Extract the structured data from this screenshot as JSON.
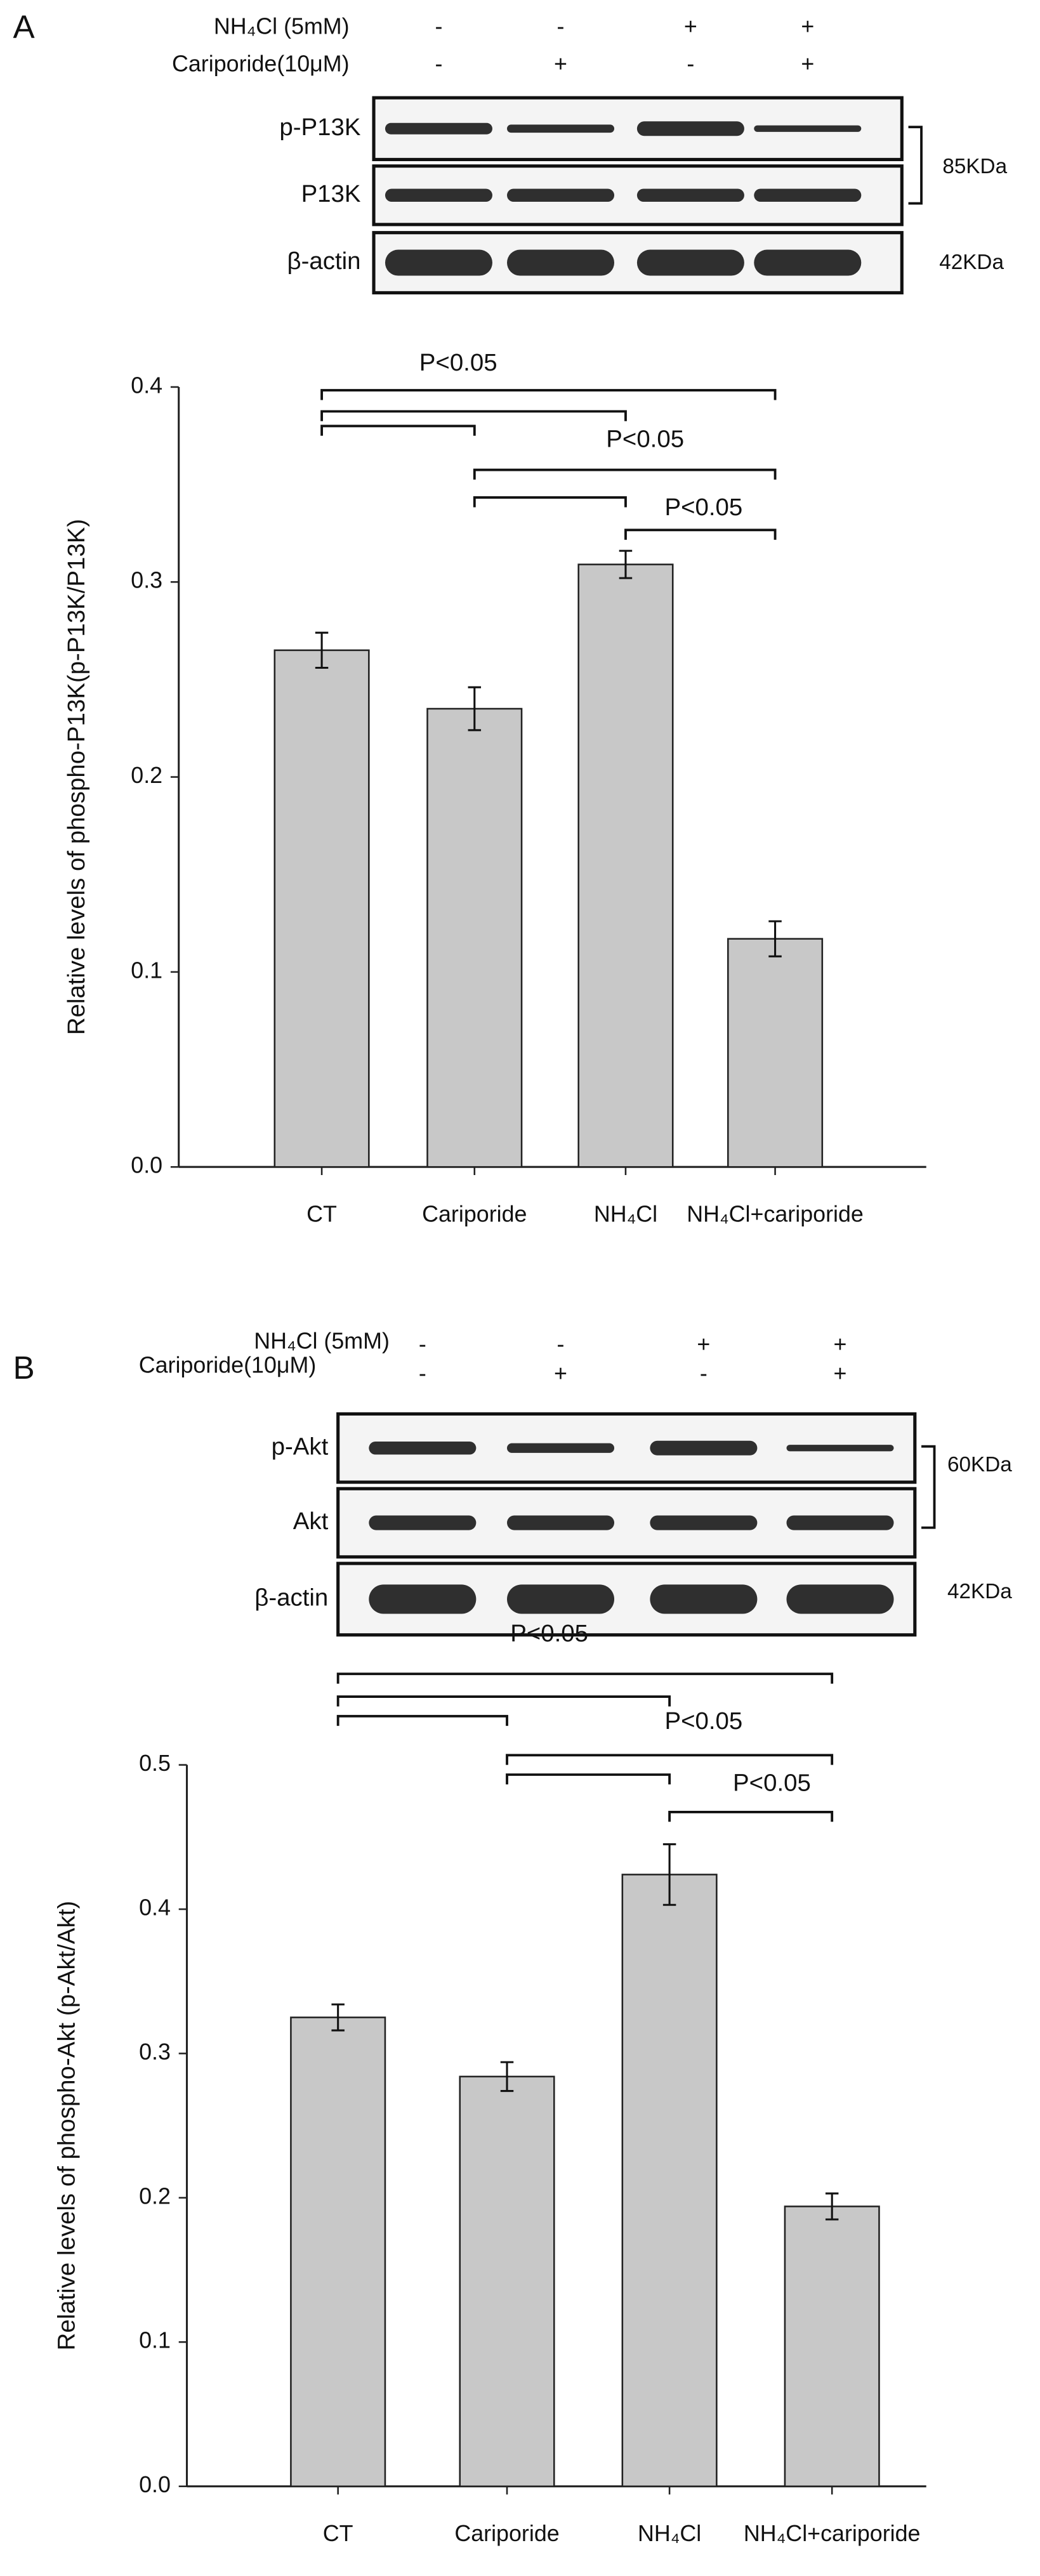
{
  "chart_data": [
    {
      "type": "bar",
      "panel": "A",
      "treatments": [
        {
          "name": "NH₄Cl (5mM)",
          "signs": [
            "-",
            "-",
            "+",
            "+"
          ]
        },
        {
          "name": "Cariporide(10μM)",
          "signs": [
            "-",
            "+",
            "-",
            "+"
          ]
        }
      ],
      "blots": [
        "p-P13K",
        "P13K",
        "β-actin"
      ],
      "weights": [
        "85KDa",
        "42KDa"
      ],
      "ylabel": "Relative levels of phospho-P13K(p-P13K/P13K)",
      "categories": [
        "CT",
        "Cariporide",
        "NH₄Cl",
        "NH₄Cl+cariporide"
      ],
      "values": [
        0.265,
        0.235,
        0.309,
        0.117
      ],
      "errors": [
        0.009,
        0.011,
        0.007,
        0.009
      ],
      "color": "#c8c8c8",
      "ylim": [
        0,
        0.4
      ],
      "yticks": [
        {
          "value": 0,
          "label": "0.0"
        },
        0.1,
        0.2,
        0.3,
        0.4
      ],
      "comparisons": [
        {
          "groups": [
            0,
            3
          ],
          "label": "P<0.05"
        },
        {
          "groups": [
            0,
            2
          ]
        },
        {
          "groups": [
            0,
            1
          ]
        },
        {
          "groups": [
            1,
            3
          ],
          "label": "P<0.05"
        },
        {
          "groups": [
            1,
            2
          ]
        },
        {
          "groups": [
            2,
            3
          ],
          "label": "P<0.05"
        }
      ]
    },
    {
      "type": "bar",
      "panel": "B",
      "treatments": [
        {
          "name": "NH₄Cl (5mM)",
          "signs": [
            "-",
            "-",
            "+",
            "+"
          ]
        },
        {
          "name": "Cariporide(10μM)",
          "signs": [
            "-",
            "+",
            "-",
            "+"
          ]
        }
      ],
      "blots": [
        "p-Akt",
        "Akt",
        "β-actin"
      ],
      "weights": [
        "60KDa",
        "42KDa"
      ],
      "ylabel": "Relative levels of phospho-Akt (p-Akt/Akt)",
      "categories": [
        "CT",
        "Cariporide",
        "NH₄Cl",
        "NH₄Cl+cariporide"
      ],
      "values": [
        0.325,
        0.284,
        0.424,
        0.194
      ],
      "errors": [
        0.009,
        0.01,
        0.021,
        0.009
      ],
      "color": "#c8c8c8",
      "ylim": [
        0,
        0.5
      ],
      "yticks": [
        {
          "value": 0,
          "label": "0.0"
        },
        0.1,
        0.2,
        0.3,
        0.4,
        0.5
      ],
      "comparisons": [
        {
          "groups": [
            0,
            3
          ],
          "label": "P<0.05"
        },
        {
          "groups": [
            0,
            2
          ]
        },
        {
          "groups": [
            0,
            1
          ]
        },
        {
          "groups": [
            1,
            3
          ],
          "label": "P<0.05"
        },
        {
          "groups": [
            1,
            2
          ]
        },
        {
          "groups": [
            2,
            3
          ],
          "label": "P<0.05"
        }
      ]
    }
  ]
}
